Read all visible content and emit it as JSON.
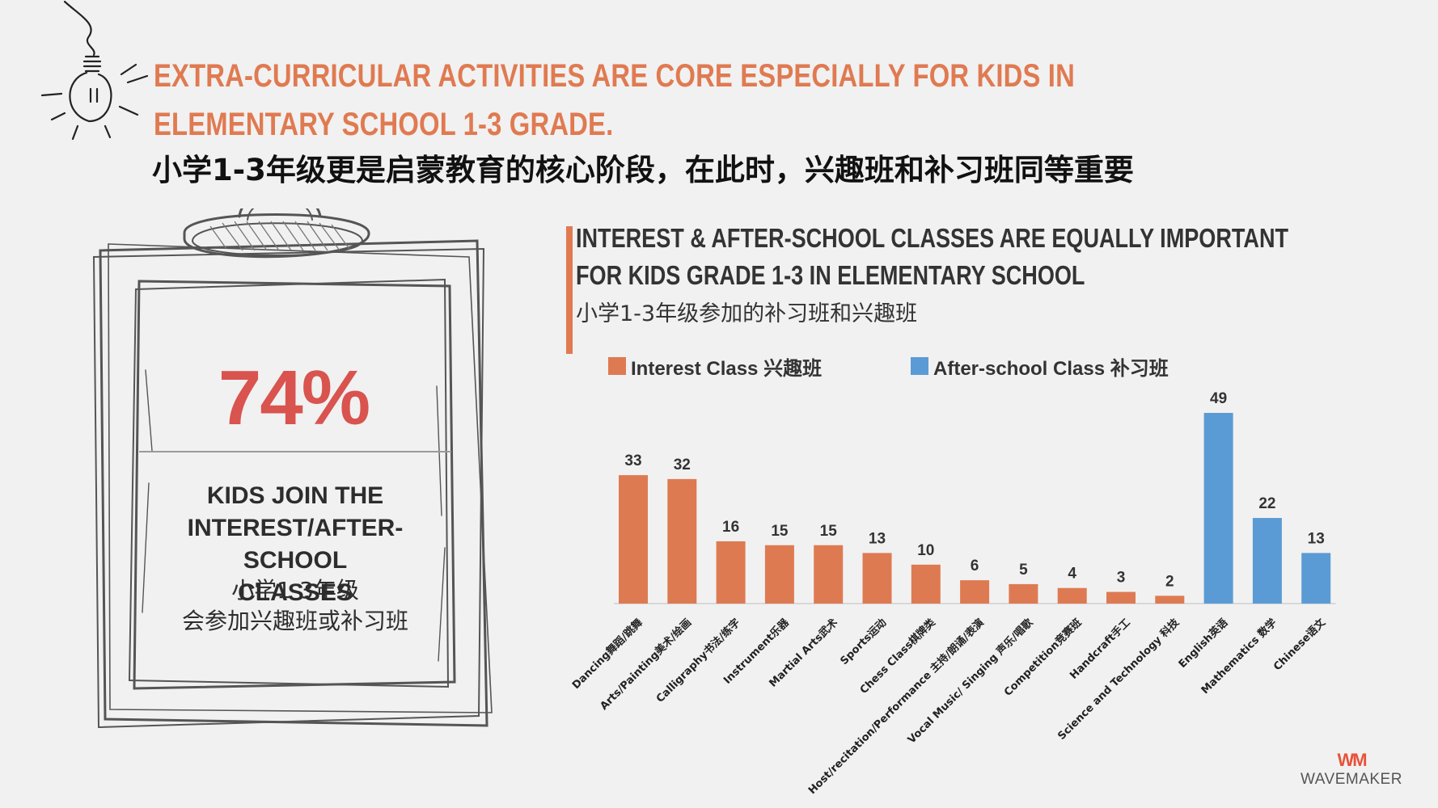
{
  "headline": {
    "line1": "EXTRA-CURRICULAR ACTIVITIES ARE CORE ESPECIALLY FOR KIDS IN",
    "line2": "ELEMENTARY SCHOOL 1-3 GRADE.",
    "zh": "小学1-3年级更是启蒙教育的核心阶段，在此时，兴趣班和补习班同等重要"
  },
  "stat": {
    "value": "74%",
    "caption_lines": [
      "KIDS JOIN THE",
      "INTEREST/AFTER-SCHOOL",
      "CLASSES"
    ],
    "caption_zh_lines": [
      "小学1-3年级",
      "会参加兴趣班或补习班"
    ]
  },
  "chart_header": {
    "title_line1": "INTEREST & AFTER-SCHOOL CLASSES ARE EQUALLY IMPORTANT",
    "title_line2": "FOR KIDS GRADE 1-3 IN ELEMENTARY SCHOOL",
    "subtitle": "小学1-3年级参加的补习班和兴趣班"
  },
  "logo": {
    "mark": "WM",
    "text": "WAVEMAKER"
  },
  "chart_data": {
    "type": "bar",
    "title": "INTEREST & AFTER-SCHOOL CLASSES ARE EQUALLY IMPORTANT FOR KIDS GRADE 1-3 IN ELEMENTARY SCHOOL",
    "subtitle": "小学1-3年级参加的补习班和兴趣班",
    "legend_position": "top",
    "grid": false,
    "ylim": [
      0,
      52
    ],
    "categories": [
      "Dancing舞蹈/跳舞",
      "Arts/Painting美术/绘画",
      "Calligraphy书法/练字",
      "Instrument乐器",
      "Martial Arts武术",
      "Sports运动",
      "Chess Class棋牌类",
      "Host/recitation/Performance 主持/朗诵/表演",
      "Vocal Music/ Singing 声乐/唱歌",
      "Competition竞赛班",
      "Handcraft手工",
      "Science and Technology 科技",
      "English英语",
      "Mathematics 数学",
      "Chinese语文"
    ],
    "values": [
      33,
      32,
      16,
      15,
      15,
      13,
      10,
      6,
      5,
      4,
      3,
      2,
      49,
      22,
      13
    ],
    "series": [
      {
        "name": "Interest Class 兴趣班",
        "color": "#de7a52",
        "indices": [
          0,
          1,
          2,
          3,
          4,
          5,
          6,
          7,
          8,
          9,
          10,
          11
        ]
      },
      {
        "name": "After-school Class 补习班",
        "color": "#5b9bd5",
        "indices": [
          12,
          13,
          14
        ]
      }
    ]
  }
}
